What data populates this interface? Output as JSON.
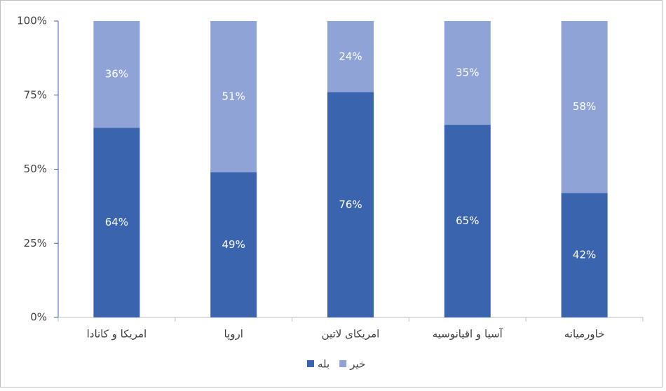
{
  "chart_data": {
    "type": "stacked-bar",
    "categories": [
      "امریکا و کانادا",
      "اروپا",
      "امریکای لاتین",
      "آسیا و اقیانوسیه",
      "خاورمیانه"
    ],
    "series": [
      {
        "name": "بله",
        "color": "#3a64ae",
        "values": [
          64,
          49,
          76,
          65,
          42
        ],
        "value_labels": [
          "64%",
          "49%",
          "76%",
          "65%",
          "42%"
        ]
      },
      {
        "name": "خیر",
        "color": "#8fa3d6",
        "values": [
          36,
          51,
          24,
          35,
          58
        ],
        "value_labels": [
          "36%",
          "51%",
          "24%",
          "35%",
          "58%"
        ]
      }
    ],
    "ylim": [
      0,
      100
    ],
    "yticks": [
      {
        "value": 0,
        "label": "0%"
      },
      {
        "value": 25,
        "label": "25%"
      },
      {
        "value": 50,
        "label": "50%"
      },
      {
        "value": 75,
        "label": "75%"
      },
      {
        "value": 100,
        "label": "100%"
      }
    ],
    "legend": "bottom"
  }
}
